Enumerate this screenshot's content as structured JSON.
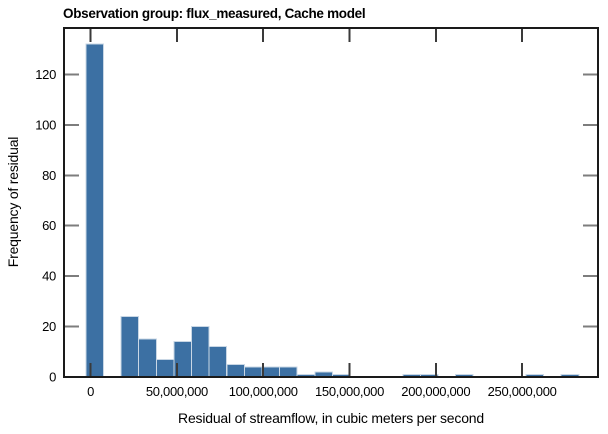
{
  "title": "Observation group: flux_measured, Cache model",
  "x_axis": {
    "label": "Residual of streamflow, in cubic meters per second",
    "tick_labels": [
      "0",
      "50,000,000",
      "100,000,000",
      "150,000,000",
      "200,000,000",
      "250,000,000"
    ],
    "tick_values": [
      0,
      50000000,
      100000000,
      150000000,
      200000000,
      250000000
    ]
  },
  "y_axis": {
    "label": "Frequency of residual",
    "tick_labels": [
      "0",
      "20",
      "40",
      "60",
      "80",
      "100",
      "120"
    ],
    "tick_values": [
      0,
      20,
      40,
      60,
      80,
      100,
      120
    ]
  },
  "chart_data": {
    "type": "bar",
    "subtype": "histogram",
    "title": "Observation group: flux_measured, Cache model",
    "xlabel": "Residual of streamflow, in cubic meters per second",
    "ylabel": "Frequency of residual",
    "bin_start": -2700000,
    "bin_width": 10200000,
    "counts": [
      132,
      0,
      24,
      15,
      7,
      14,
      20,
      12,
      5,
      4,
      4,
      4,
      1,
      2,
      1,
      0,
      0,
      0,
      1,
      1,
      0,
      1,
      0,
      0,
      0,
      1,
      0,
      1
    ],
    "xlim": [
      -15400000,
      294000000
    ],
    "ylim": [
      0,
      138.4
    ],
    "grid": false,
    "legend": null,
    "bar_color": "#3c70a3",
    "bar_edge_color": "#c9d7e5",
    "spine_color": "#1a1a1a",
    "x_tick_color": "#3a3a3a",
    "y_tick_color": "#7d7d7d"
  }
}
